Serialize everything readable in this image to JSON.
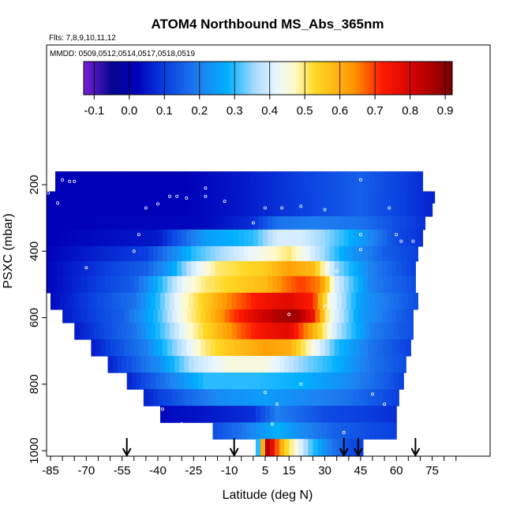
{
  "chart_data": {
    "type": "heatmap",
    "title": "ATOM4 Northbound MS_Abs_365nm",
    "flights_label": "Flts: 7,8,9,10,11,12",
    "dates_label": "MMDD: 0509,0512,0514,0517,0518,0519",
    "xlabel": "Latitude (deg N)",
    "ylabel": "PSXC (mbar)",
    "xlim": [
      -88,
      85
    ],
    "ylim": [
      1020,
      60
    ],
    "x_ticks": [
      -85,
      -70,
      -55,
      -40,
      -25,
      -10,
      5,
      15,
      30,
      45,
      60,
      75
    ],
    "y_ticks": [
      200,
      400,
      600,
      800,
      1000
    ],
    "colorbar": {
      "ticks": [
        -0.1,
        0.0,
        0.1,
        0.2,
        0.3,
        0.4,
        0.5,
        0.6,
        0.7,
        0.8,
        0.9
      ],
      "range": [
        -0.13,
        0.92
      ],
      "stops": [
        {
          "v": -0.13,
          "c": "#7a1fd6"
        },
        {
          "v": -0.05,
          "c": "#06058f"
        },
        {
          "v": 0.02,
          "c": "#0000b8"
        },
        {
          "v": 0.1,
          "c": "#0a3fe0"
        },
        {
          "v": 0.2,
          "c": "#1e7ff0"
        },
        {
          "v": 0.28,
          "c": "#00b0ff"
        },
        {
          "v": 0.36,
          "c": "#aadcff"
        },
        {
          "v": 0.42,
          "c": "#eaf6ff"
        },
        {
          "v": 0.47,
          "c": "#fffac8"
        },
        {
          "v": 0.53,
          "c": "#ffd824"
        },
        {
          "v": 0.64,
          "c": "#ff9500"
        },
        {
          "v": 0.72,
          "c": "#ff1a00"
        },
        {
          "v": 0.82,
          "c": "#cc0000"
        },
        {
          "v": 0.92,
          "c": "#7a0000"
        }
      ]
    },
    "layers": [
      {
        "p": [
          160,
          220
        ],
        "lat": [
          -83,
          71
        ],
        "profile": "upper"
      },
      {
        "p": [
          220,
          255
        ],
        "lat": [
          -88,
          76
        ],
        "profile": "upper"
      },
      {
        "p": [
          255,
          295
        ],
        "lat": [
          -88,
          75
        ],
        "profile": "upper"
      },
      {
        "p": [
          295,
          335
        ],
        "lat": [
          -88,
          72
        ],
        "profile": "upper2"
      },
      {
        "p": [
          335,
          385
        ],
        "lat": [
          -88,
          71
        ],
        "profile": "mid1"
      },
      {
        "p": [
          385,
          430
        ],
        "lat": [
          -88,
          69
        ],
        "profile": "mid2"
      },
      {
        "p": [
          430,
          475
        ],
        "lat": [
          -88,
          68
        ],
        "profile": "mid3"
      },
      {
        "p": [
          475,
          525
        ],
        "lat": [
          -88,
          68
        ],
        "profile": "core1"
      },
      {
        "p": [
          525,
          575
        ],
        "lat": [
          -85,
          69
        ],
        "profile": "core2"
      },
      {
        "p": [
          575,
          615
        ],
        "lat": [
          -80,
          67
        ],
        "profile": "core3"
      },
      {
        "p": [
          615,
          665
        ],
        "lat": [
          -75,
          67
        ],
        "profile": "core4"
      },
      {
        "p": [
          665,
          715
        ],
        "lat": [
          -68,
          66
        ],
        "profile": "low1"
      },
      {
        "p": [
          715,
          765
        ],
        "lat": [
          -61,
          64
        ],
        "profile": "low2"
      },
      {
        "p": [
          765,
          815
        ],
        "lat": [
          -53,
          63
        ],
        "profile": "low3"
      },
      {
        "p": [
          815,
          865
        ],
        "lat": [
          -46,
          61
        ],
        "profile": "low4"
      },
      {
        "p": [
          865,
          915
        ],
        "lat": [
          -39,
          60
        ],
        "profile": "low5"
      },
      {
        "p": [
          915,
          965
        ],
        "lat": [
          -17,
          60
        ],
        "profile": "low6"
      },
      {
        "p": [
          965,
          1020
        ],
        "lat": [
          1,
          46
        ],
        "profile": "surface"
      }
    ],
    "profiles": {
      "upper": [
        [
          -88,
          0.02
        ],
        [
          -30,
          0.02
        ],
        [
          -5,
          0.05
        ],
        [
          20,
          0.1
        ],
        [
          45,
          0.15
        ],
        [
          70,
          0.08
        ],
        [
          76,
          0.06
        ]
      ],
      "upper2": [
        [
          -88,
          0.02
        ],
        [
          -20,
          0.03
        ],
        [
          0,
          0.08
        ],
        [
          10,
          0.18
        ],
        [
          25,
          0.2
        ],
        [
          45,
          0.18
        ],
        [
          72,
          0.08
        ]
      ],
      "mid1": [
        [
          -88,
          0.02
        ],
        [
          -40,
          0.05
        ],
        [
          -30,
          0.15
        ],
        [
          -20,
          0.25
        ],
        [
          0,
          0.3
        ],
        [
          10,
          0.4
        ],
        [
          20,
          0.4
        ],
        [
          30,
          0.35
        ],
        [
          45,
          0.25
        ],
        [
          60,
          0.12
        ],
        [
          71,
          0.08
        ]
      ],
      "mid2": [
        [
          -88,
          0.02
        ],
        [
          -45,
          0.1
        ],
        [
          -35,
          0.2
        ],
        [
          -25,
          0.3
        ],
        [
          -10,
          0.38
        ],
        [
          5,
          0.45
        ],
        [
          15,
          0.5
        ],
        [
          25,
          0.4
        ],
        [
          40,
          0.25
        ],
        [
          55,
          0.15
        ],
        [
          69,
          0.1
        ]
      ],
      "mid3": [
        [
          -88,
          0.02
        ],
        [
          -45,
          0.15
        ],
        [
          -35,
          0.25
        ],
        [
          -25,
          0.4
        ],
        [
          -15,
          0.5
        ],
        [
          5,
          0.55
        ],
        [
          15,
          0.62
        ],
        [
          25,
          0.58
        ],
        [
          35,
          0.35
        ],
        [
          50,
          0.2
        ],
        [
          68,
          0.1
        ]
      ],
      "core1": [
        [
          -88,
          0.02
        ],
        [
          -50,
          0.15
        ],
        [
          -40,
          0.28
        ],
        [
          -30,
          0.42
        ],
        [
          -20,
          0.5
        ],
        [
          -5,
          0.55
        ],
        [
          5,
          0.58
        ],
        [
          12,
          0.65
        ],
        [
          20,
          0.7
        ],
        [
          28,
          0.65
        ],
        [
          35,
          0.4
        ],
        [
          50,
          0.2
        ],
        [
          68,
          0.12
        ]
      ],
      "core2": [
        [
          -85,
          0.03
        ],
        [
          -50,
          0.18
        ],
        [
          -40,
          0.3
        ],
        [
          -30,
          0.45
        ],
        [
          -20,
          0.55
        ],
        [
          -10,
          0.65
        ],
        [
          5,
          0.75
        ],
        [
          15,
          0.78
        ],
        [
          25,
          0.72
        ],
        [
          32,
          0.45
        ],
        [
          45,
          0.25
        ],
        [
          69,
          0.12
        ]
      ],
      "core3": [
        [
          -80,
          0.05
        ],
        [
          -55,
          0.15
        ],
        [
          -40,
          0.3
        ],
        [
          -30,
          0.45
        ],
        [
          -20,
          0.55
        ],
        [
          -10,
          0.68
        ],
        [
          0,
          0.78
        ],
        [
          10,
          0.85
        ],
        [
          18,
          0.88
        ],
        [
          25,
          0.75
        ],
        [
          32,
          0.45
        ],
        [
          45,
          0.25
        ],
        [
          67,
          0.12
        ]
      ],
      "core4": [
        [
          -75,
          0.05
        ],
        [
          -50,
          0.18
        ],
        [
          -35,
          0.35
        ],
        [
          -25,
          0.48
        ],
        [
          -15,
          0.58
        ],
        [
          -5,
          0.68
        ],
        [
          5,
          0.75
        ],
        [
          15,
          0.78
        ],
        [
          25,
          0.6
        ],
        [
          35,
          0.38
        ],
        [
          50,
          0.2
        ],
        [
          67,
          0.12
        ]
      ],
      "low1": [
        [
          -68,
          0.05
        ],
        [
          -45,
          0.2
        ],
        [
          -30,
          0.38
        ],
        [
          -20,
          0.5
        ],
        [
          -10,
          0.56
        ],
        [
          5,
          0.62
        ],
        [
          15,
          0.6
        ],
        [
          25,
          0.45
        ],
        [
          35,
          0.3
        ],
        [
          50,
          0.18
        ],
        [
          66,
          0.1
        ]
      ],
      "low2": [
        [
          -61,
          0.06
        ],
        [
          -40,
          0.22
        ],
        [
          -25,
          0.38
        ],
        [
          -10,
          0.45
        ],
        [
          5,
          0.45
        ],
        [
          20,
          0.35
        ],
        [
          35,
          0.28
        ],
        [
          50,
          0.18
        ],
        [
          64,
          0.12
        ]
      ],
      "low3": [
        [
          -53,
          0.06
        ],
        [
          -35,
          0.2
        ],
        [
          -20,
          0.3
        ],
        [
          0,
          0.3
        ],
        [
          20,
          0.28
        ],
        [
          40,
          0.22
        ],
        [
          55,
          0.15
        ],
        [
          63,
          0.1
        ]
      ],
      "low4": [
        [
          -46,
          0.06
        ],
        [
          -30,
          0.15
        ],
        [
          -15,
          0.22
        ],
        [
          5,
          0.25
        ],
        [
          20,
          0.22
        ],
        [
          40,
          0.18
        ],
        [
          61,
          0.1
        ]
      ],
      "low5": [
        [
          -39,
          0.03
        ],
        [
          -20,
          0.05
        ],
        [
          0,
          0.08
        ],
        [
          10,
          0.2
        ],
        [
          15,
          0.18
        ],
        [
          30,
          0.12
        ],
        [
          45,
          0.1
        ],
        [
          60,
          0.08
        ]
      ],
      "low6": [
        [
          -17,
          0.12
        ],
        [
          -5,
          0.18
        ],
        [
          5,
          0.25
        ],
        [
          10,
          0.28
        ],
        [
          20,
          0.22
        ],
        [
          35,
          0.15
        ],
        [
          50,
          0.12
        ],
        [
          60,
          0.1
        ]
      ],
      "surface": [
        [
          1,
          0.15
        ],
        [
          4,
          0.6
        ],
        [
          6,
          0.85
        ],
        [
          9,
          0.72
        ],
        [
          13,
          0.55
        ],
        [
          18,
          0.45
        ],
        [
          24,
          0.32
        ],
        [
          32,
          0.2
        ],
        [
          40,
          0.12
        ],
        [
          46,
          0.1
        ]
      ]
    },
    "arrows_lat": [
      -53,
      -8,
      38,
      44,
      68
    ],
    "markers": [
      [
        -80,
        185
      ],
      [
        -77,
        190
      ],
      [
        -86,
        225
      ],
      [
        -82,
        255
      ],
      [
        -35,
        235
      ],
      [
        -32,
        235
      ],
      [
        -28,
        240
      ],
      [
        -20,
        235
      ],
      [
        -40,
        258
      ],
      [
        -45,
        270
      ],
      [
        5,
        270
      ],
      [
        12,
        270
      ],
      [
        20,
        265
      ],
      [
        30,
        275
      ],
      [
        45,
        185
      ],
      [
        -75,
        190
      ],
      [
        -48,
        350
      ],
      [
        0,
        315
      ],
      [
        62,
        370
      ],
      [
        67,
        370
      ],
      [
        45,
        395
      ],
      [
        30,
        565
      ],
      [
        15,
        590
      ],
      [
        10,
        860
      ],
      [
        5,
        825
      ],
      [
        20,
        800
      ],
      [
        55,
        860
      ],
      [
        65,
        850
      ],
      [
        -38,
        875
      ],
      [
        -52,
        885
      ],
      [
        -60,
        920
      ],
      [
        -30,
        920
      ],
      [
        8,
        920
      ],
      [
        -50,
        400
      ],
      [
        45,
        350
      ],
      [
        57,
        270
      ],
      [
        -12,
        250
      ],
      [
        -20,
        210
      ],
      [
        60,
        350
      ],
      [
        -88,
        530
      ],
      [
        50,
        830
      ],
      [
        35,
        460
      ],
      [
        -70,
        450
      ],
      [
        38,
        945
      ]
    ]
  }
}
